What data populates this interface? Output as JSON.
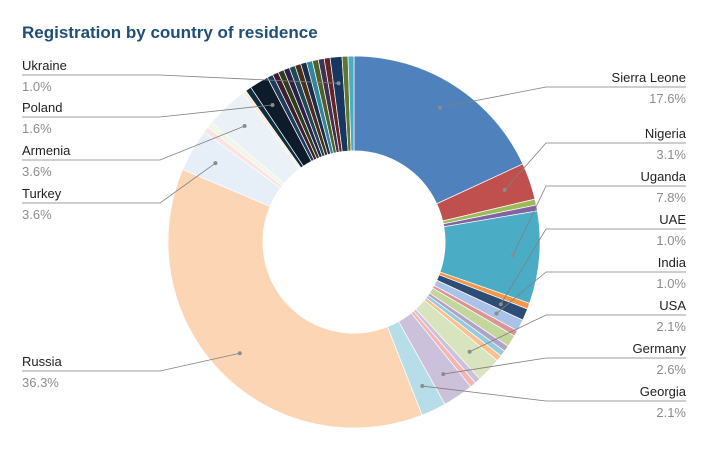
{
  "chart_data": {
    "type": "pie",
    "title": "Registration by country of residence",
    "hole": 0.49,
    "slices": [
      {
        "name": "Sierra Leone",
        "value": 17.6,
        "color": "#4f81bd"
      },
      {
        "name": "Nigeria",
        "value": 3.1,
        "color": "#c0504d"
      },
      {
        "name": "",
        "value": 0.5,
        "color": "#9bbb59"
      },
      {
        "name": "",
        "value": 0.5,
        "color": "#8064a2"
      },
      {
        "name": "Uganda",
        "value": 7.8,
        "color": "#4bacc6"
      },
      {
        "name": "",
        "value": 0.5,
        "color": "#f79646"
      },
      {
        "name": "UAE",
        "value": 1.0,
        "color": "#2c4d75"
      },
      {
        "name": "India",
        "value": 1.0,
        "color": "#a9c3e8"
      },
      {
        "name": "",
        "value": 0.5,
        "color": "#d99694"
      },
      {
        "name": "",
        "value": 1.0,
        "color": "#c3d69b"
      },
      {
        "name": "",
        "value": 0.5,
        "color": "#b3a2c7"
      },
      {
        "name": "",
        "value": 0.5,
        "color": "#93cddd"
      },
      {
        "name": "",
        "value": 0.5,
        "color": "#fac090"
      },
      {
        "name": "USA",
        "value": 2.1,
        "color": "#d7e4bd"
      },
      {
        "name": "",
        "value": 0.5,
        "color": "#ccc1da"
      },
      {
        "name": "",
        "value": 0.5,
        "color": "#f2b6b5"
      },
      {
        "name": "Germany",
        "value": 2.6,
        "color": "#ccc1da"
      },
      {
        "name": "Georgia",
        "value": 2.1,
        "color": "#b7dde8"
      },
      {
        "name": "Russia",
        "value": 36.3,
        "color": "#fcd5b5"
      },
      {
        "name": "Turkey",
        "value": 3.6,
        "color": "#e6eef8"
      },
      {
        "name": "",
        "value": 0.5,
        "color": "#fbe3e3"
      },
      {
        "name": "",
        "value": 0.5,
        "color": "#f1f6e6"
      },
      {
        "name": "Armenia",
        "value": 3.6,
        "color": "#eaf1f7"
      },
      {
        "name": "",
        "value": 0.3,
        "color": "#fde9d9"
      },
      {
        "name": "",
        "value": 0.5,
        "color": "#0f2d3a"
      },
      {
        "name": "Poland",
        "value": 1.6,
        "color": "#0d1b2a"
      },
      {
        "name": "",
        "value": 0.5,
        "color": "#1d3b5a"
      },
      {
        "name": "",
        "value": 0.5,
        "color": "#3b1f2f"
      },
      {
        "name": "",
        "value": 0.5,
        "color": "#2f3d1f"
      },
      {
        "name": "",
        "value": 0.5,
        "color": "#2e1f4a"
      },
      {
        "name": "",
        "value": 0.5,
        "color": "#1e4a57"
      },
      {
        "name": "",
        "value": 0.5,
        "color": "#4a2e1a"
      },
      {
        "name": "",
        "value": 0.5,
        "color": "#1a2e4a"
      },
      {
        "name": "",
        "value": 0.5,
        "color": "#31859c"
      },
      {
        "name": "",
        "value": 0.5,
        "color": "#4e6128"
      },
      {
        "name": "",
        "value": 0.5,
        "color": "#3f3151"
      },
      {
        "name": "",
        "value": 0.5,
        "color": "#632523"
      },
      {
        "name": "Ukraine",
        "value": 1.0,
        "color": "#17375e"
      },
      {
        "name": "",
        "value": 0.5,
        "color": "#5f7530"
      },
      {
        "name": "",
        "value": 0.5,
        "color": "#4bacc6"
      }
    ],
    "labels": [
      {
        "name": "Sierra Leone",
        "value": "17.6%",
        "side": "right"
      },
      {
        "name": "Nigeria",
        "value": "3.1%",
        "side": "right"
      },
      {
        "name": "Uganda",
        "value": "7.8%",
        "side": "right"
      },
      {
        "name": "UAE",
        "value": "1.0%",
        "side": "right"
      },
      {
        "name": "India",
        "value": "1.0%",
        "side": "right"
      },
      {
        "name": "USA",
        "value": "2.1%",
        "side": "right"
      },
      {
        "name": "Germany",
        "value": "2.6%",
        "side": "right"
      },
      {
        "name": "Georgia",
        "value": "2.1%",
        "side": "right"
      },
      {
        "name": "Ukraine",
        "value": "1.0%",
        "side": "left"
      },
      {
        "name": "Poland",
        "value": "1.6%",
        "side": "left"
      },
      {
        "name": "Armenia",
        "value": "3.6%",
        "side": "left"
      },
      {
        "name": "Turkey",
        "value": "3.6%",
        "side": "left"
      },
      {
        "name": "Russia",
        "value": "36.3%",
        "side": "left"
      }
    ]
  }
}
